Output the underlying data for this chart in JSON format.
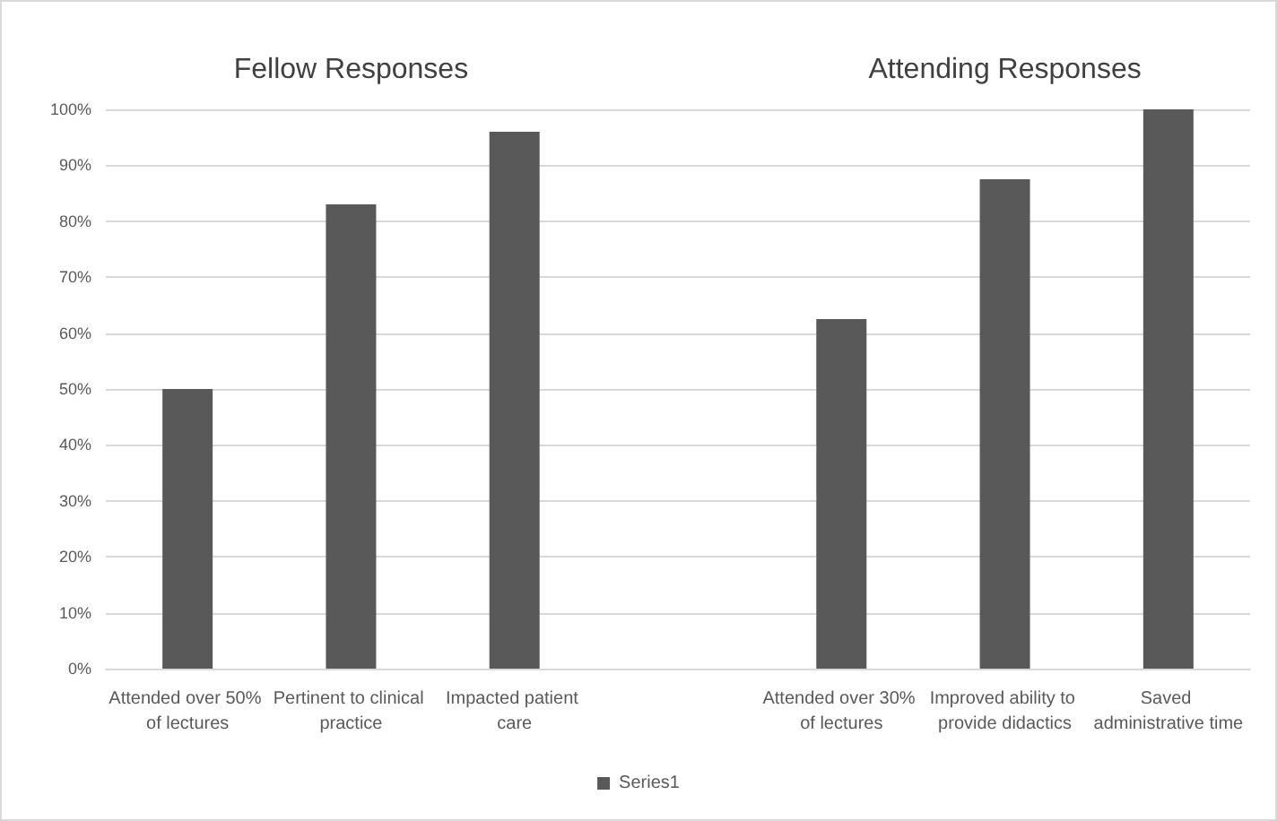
{
  "chart_data": {
    "type": "bar",
    "annotations": [
      "Fellow Responses",
      "Attending Responses"
    ],
    "categories": [
      "Attended over 50% of lectures",
      "Pertinent to clinical practice",
      "Impacted patient care",
      null,
      "Attended over 30% of lectures",
      "Improved ability to provide didactics",
      "Saved administrative time"
    ],
    "series": [
      {
        "name": "Series1",
        "color": "#595959",
        "values": [
          50,
          83,
          96,
          null,
          62.5,
          87.5,
          100
        ]
      }
    ],
    "ylim": [
      0,
      100
    ],
    "yticks": [
      {
        "value": 0,
        "label": "0%"
      },
      {
        "value": 10,
        "label": "10%"
      },
      {
        "value": 20,
        "label": "20%"
      },
      {
        "value": 30,
        "label": "30%"
      },
      {
        "value": 40,
        "label": "40%"
      },
      {
        "value": 50,
        "label": "50%"
      },
      {
        "value": 60,
        "label": "60%"
      },
      {
        "value": 70,
        "label": "70%"
      },
      {
        "value": 80,
        "label": "80%"
      },
      {
        "value": 90,
        "label": "90%"
      },
      {
        "value": 100,
        "label": "100%"
      }
    ],
    "grid": "y",
    "legend": "bottom"
  }
}
